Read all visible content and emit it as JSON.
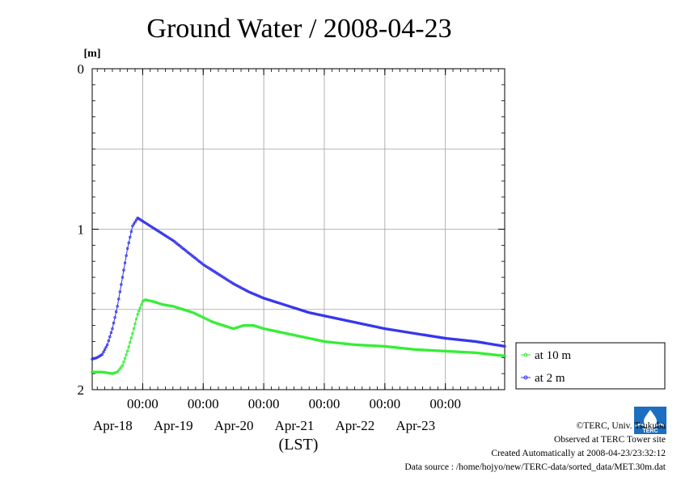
{
  "chart_data": {
    "type": "line",
    "title": "Ground Water / 2008-04-23",
    "ylabel": "[m]",
    "xlabel": "(LST)",
    "ylim": [
      2,
      0
    ],
    "y_inverted": true,
    "yticks": [
      "0",
      "1",
      "2"
    ],
    "xlim": [
      "2008-04-17T04:00",
      "2008-04-23T23:30"
    ],
    "xticks": [
      {
        "x": "2008-04-18T00:00",
        "time": "00:00",
        "day": "Apr-18"
      },
      {
        "x": "2008-04-19T00:00",
        "time": "00:00",
        "day": "Apr-19"
      },
      {
        "x": "2008-04-20T00:00",
        "time": "00:00",
        "day": "Apr-20"
      },
      {
        "x": "2008-04-21T00:00",
        "time": "00:00",
        "day": "Apr-21"
      },
      {
        "x": "2008-04-22T00:00",
        "time": "00:00",
        "day": "Apr-22"
      },
      {
        "x": "2008-04-23T00:00",
        "time": "00:00",
        "day": "Apr-23"
      }
    ],
    "grid": true,
    "legend_position": "right",
    "series": [
      {
        "name": "at 10 m",
        "color": "#33ee33",
        "points": [
          [
            "2008-04-17T04:00",
            1.89
          ],
          [
            "2008-04-17T08:00",
            1.89
          ],
          [
            "2008-04-17T12:00",
            1.9
          ],
          [
            "2008-04-17T14:00",
            1.89
          ],
          [
            "2008-04-17T16:00",
            1.85
          ],
          [
            "2008-04-17T18:00",
            1.76
          ],
          [
            "2008-04-17T20:00",
            1.65
          ],
          [
            "2008-04-17T22:00",
            1.53
          ],
          [
            "2008-04-18T00:00",
            1.45
          ],
          [
            "2008-04-18T01:00",
            1.44
          ],
          [
            "2008-04-18T04:00",
            1.45
          ],
          [
            "2008-04-18T08:00",
            1.47
          ],
          [
            "2008-04-18T12:00",
            1.48
          ],
          [
            "2008-04-18T16:00",
            1.5
          ],
          [
            "2008-04-18T20:00",
            1.52
          ],
          [
            "2008-04-19T00:00",
            1.55
          ],
          [
            "2008-04-19T04:00",
            1.58
          ],
          [
            "2008-04-19T08:00",
            1.6
          ],
          [
            "2008-04-19T12:00",
            1.62
          ],
          [
            "2008-04-19T14:00",
            1.61
          ],
          [
            "2008-04-19T16:00",
            1.6
          ],
          [
            "2008-04-19T20:00",
            1.6
          ],
          [
            "2008-04-20T00:00",
            1.62
          ],
          [
            "2008-04-20T06:00",
            1.64
          ],
          [
            "2008-04-20T12:00",
            1.66
          ],
          [
            "2008-04-20T18:00",
            1.68
          ],
          [
            "2008-04-21T00:00",
            1.7
          ],
          [
            "2008-04-21T12:00",
            1.72
          ],
          [
            "2008-04-22T00:00",
            1.73
          ],
          [
            "2008-04-22T12:00",
            1.75
          ],
          [
            "2008-04-23T00:00",
            1.76
          ],
          [
            "2008-04-23T12:00",
            1.77
          ],
          [
            "2008-04-23T23:30",
            1.79
          ]
        ]
      },
      {
        "name": "at 2 m",
        "color": "#3333ee",
        "points": [
          [
            "2008-04-17T04:00",
            1.81
          ],
          [
            "2008-04-17T06:00",
            1.8
          ],
          [
            "2008-04-17T08:00",
            1.78
          ],
          [
            "2008-04-17T10:00",
            1.72
          ],
          [
            "2008-04-17T12:00",
            1.62
          ],
          [
            "2008-04-17T14:00",
            1.48
          ],
          [
            "2008-04-17T16:00",
            1.3
          ],
          [
            "2008-04-17T18:00",
            1.12
          ],
          [
            "2008-04-17T20:00",
            0.98
          ],
          [
            "2008-04-17T22:00",
            0.93
          ],
          [
            "2008-04-18T00:00",
            0.95
          ],
          [
            "2008-04-18T04:00",
            0.99
          ],
          [
            "2008-04-18T08:00",
            1.03
          ],
          [
            "2008-04-18T12:00",
            1.07
          ],
          [
            "2008-04-18T16:00",
            1.12
          ],
          [
            "2008-04-18T20:00",
            1.17
          ],
          [
            "2008-04-19T00:00",
            1.22
          ],
          [
            "2008-04-19T06:00",
            1.28
          ],
          [
            "2008-04-19T12:00",
            1.34
          ],
          [
            "2008-04-19T18:00",
            1.39
          ],
          [
            "2008-04-20T00:00",
            1.43
          ],
          [
            "2008-04-20T06:00",
            1.46
          ],
          [
            "2008-04-20T12:00",
            1.49
          ],
          [
            "2008-04-20T18:00",
            1.52
          ],
          [
            "2008-04-21T00:00",
            1.54
          ],
          [
            "2008-04-21T12:00",
            1.58
          ],
          [
            "2008-04-22T00:00",
            1.62
          ],
          [
            "2008-04-22T12:00",
            1.65
          ],
          [
            "2008-04-23T00:00",
            1.68
          ],
          [
            "2008-04-23T12:00",
            1.7
          ],
          [
            "2008-04-23T23:30",
            1.73
          ]
        ]
      }
    ]
  },
  "credits": {
    "line1": "©TERC, Univ. Tsukuba",
    "line2": "Observed at TERC Tower site",
    "line3": "Created Automatically at 2008-04-23/23:32:12",
    "line4": "Data source : /home/hojyo/new/TERC-data/sorted_data/MET.30m.dat"
  },
  "logo": {
    "label": "TERC",
    "color": "#1c6fc0"
  }
}
